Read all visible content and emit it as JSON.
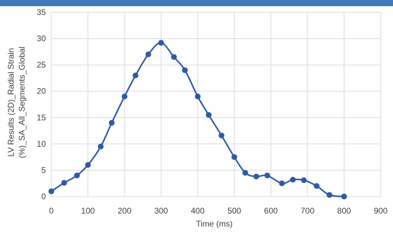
{
  "colors": {
    "top_bar": "#3d7ab8",
    "series_line": "#2e5aa6",
    "gridline": "#d9d9d9",
    "axis_text": "#404040"
  },
  "chart_data": {
    "type": "line",
    "title": "",
    "xlabel": "Time (ms)",
    "ylabel_lines": [
      "LV Results (2D)_Radial Strain",
      "(%)_SA_All_Segments_Global"
    ],
    "xlim": [
      0,
      900
    ],
    "ylim": [
      0,
      35
    ],
    "x_ticks": [
      0,
      100,
      200,
      300,
      400,
      500,
      600,
      700,
      800,
      900
    ],
    "y_ticks": [
      0,
      5,
      10,
      15,
      20,
      25,
      30,
      35
    ],
    "grid": true,
    "legend": "none",
    "series": [
      {
        "x": [
          0,
          35,
          70,
          100,
          135,
          165,
          200,
          230,
          265,
          300,
          335,
          365,
          400,
          430,
          465,
          500,
          530,
          560,
          590,
          630,
          660,
          690,
          725,
          760,
          800
        ],
        "y": [
          1.0,
          2.6,
          4.0,
          6.0,
          9.5,
          14.0,
          19.0,
          23.0,
          27.0,
          29.2,
          26.5,
          24.0,
          19.0,
          15.5,
          11.6,
          7.5,
          4.5,
          3.8,
          4.0,
          2.5,
          3.2,
          3.1,
          2.0,
          0.3,
          0.0
        ]
      }
    ]
  }
}
